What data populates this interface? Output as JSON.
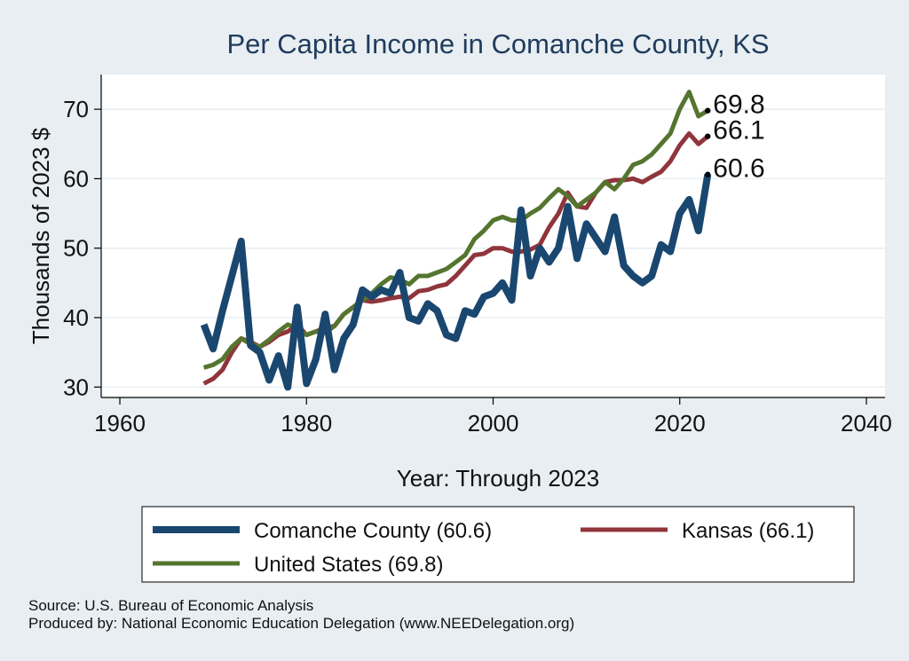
{
  "chart_data": {
    "type": "line",
    "title": "Per Capita Income in Comanche County, KS",
    "xlabel": "Year: Through 2023",
    "ylabel": "Thousands of 2023 $",
    "xlim": [
      1958,
      2042
    ],
    "ylim": [
      28.5,
      75
    ],
    "xticks": [
      1960,
      1980,
      2000,
      2020,
      2040
    ],
    "yticks": [
      30,
      40,
      50,
      60,
      70
    ],
    "grid": true,
    "x": [
      1969,
      1970,
      1971,
      1972,
      1973,
      1974,
      1975,
      1976,
      1977,
      1978,
      1979,
      1980,
      1981,
      1982,
      1983,
      1984,
      1985,
      1986,
      1987,
      1988,
      1989,
      1990,
      1991,
      1992,
      1993,
      1994,
      1995,
      1996,
      1997,
      1998,
      1999,
      2000,
      2001,
      2002,
      2003,
      2004,
      2005,
      2006,
      2007,
      2008,
      2009,
      2010,
      2011,
      2012,
      2013,
      2014,
      2015,
      2016,
      2017,
      2018,
      2019,
      2020,
      2021,
      2022,
      2023
    ],
    "series": [
      {
        "name": "Comanche County",
        "legend": "Comanche County (60.6)",
        "end_label": "60.6",
        "color": "#1a476f",
        "values": [
          39.0,
          35.5,
          41.0,
          46.0,
          51.0,
          36.0,
          35.0,
          31.0,
          34.5,
          30.0,
          41.5,
          30.5,
          34.0,
          40.5,
          32.5,
          37.0,
          39.0,
          44.0,
          43.0,
          44.0,
          43.5,
          46.5,
          40.0,
          39.5,
          42.0,
          41.0,
          37.5,
          37.0,
          41.0,
          40.5,
          43.0,
          43.5,
          45.0,
          42.5,
          55.5,
          46.0,
          50.0,
          48.0,
          50.0,
          56.0,
          48.5,
          53.5,
          51.5,
          49.5,
          54.5,
          47.5,
          46.0,
          45.0,
          46.0,
          50.5,
          49.5,
          55.0,
          57.0,
          52.5,
          60.6
        ]
      },
      {
        "name": "Kansas",
        "legend": "Kansas (66.1)",
        "end_label": "66.1",
        "color": "#90353b",
        "values": [
          30.5,
          31.2,
          32.5,
          35.0,
          37.0,
          36.5,
          35.8,
          36.5,
          37.5,
          38.0,
          39.0,
          37.5,
          38.0,
          38.5,
          38.8,
          40.5,
          41.5,
          42.5,
          42.3,
          42.5,
          42.8,
          43.0,
          42.8,
          43.8,
          44.0,
          44.5,
          44.8,
          46.0,
          47.5,
          49.0,
          49.2,
          50.0,
          50.0,
          49.5,
          49.5,
          49.8,
          50.5,
          53.0,
          55.0,
          58.0,
          56.0,
          55.8,
          58.0,
          59.5,
          59.8,
          59.8,
          60.0,
          59.5,
          60.3,
          61.0,
          62.5,
          64.8,
          66.5,
          65.0,
          66.1
        ]
      },
      {
        "name": "United States",
        "legend": "United States (69.8)",
        "end_label": "69.8",
        "color": "#55752f",
        "values": [
          32.8,
          33.2,
          34.0,
          35.8,
          37.0,
          36.2,
          35.8,
          36.8,
          38.0,
          39.0,
          38.5,
          37.5,
          38.0,
          37.8,
          38.8,
          40.5,
          41.5,
          42.5,
          43.5,
          44.8,
          45.8,
          45.5,
          44.8,
          46.0,
          46.0,
          46.5,
          47.0,
          48.0,
          49.0,
          51.3,
          52.5,
          54.0,
          54.5,
          54.0,
          54.0,
          55.0,
          55.8,
          57.2,
          58.5,
          57.5,
          56.0,
          57.0,
          58.0,
          59.5,
          58.5,
          60.0,
          62.0,
          62.5,
          63.5,
          65.0,
          66.5,
          70.0,
          72.5,
          69.0,
          69.8
        ]
      }
    ],
    "legend_position": "bottom",
    "legend_order": [
      "Comanche County",
      "Kansas",
      "United States"
    ]
  },
  "footer": {
    "source": "Source: U.S. Bureau of Economic Analysis",
    "produced_by": "Produced by: National Economic Education Delegation (www.NEEDelegation.org)"
  }
}
